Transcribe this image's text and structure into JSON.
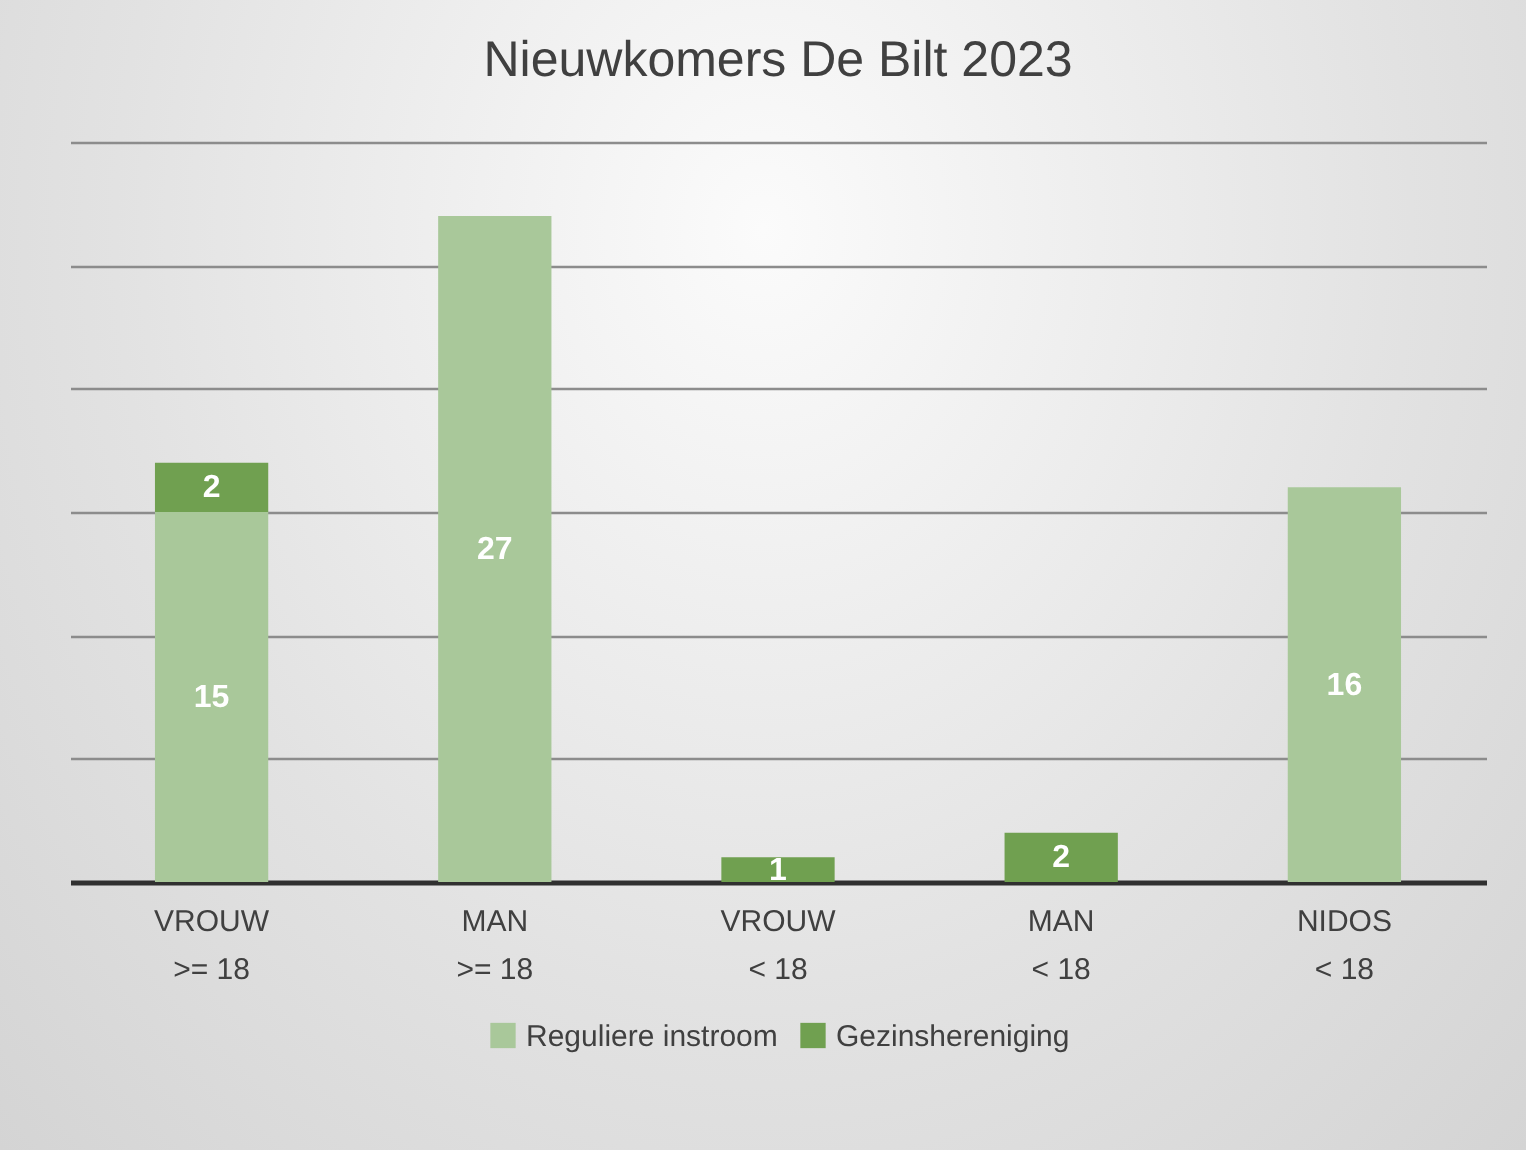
{
  "chart_data": {
    "type": "bar",
    "title": "Nieuwkomers De Bilt 2023",
    "categories": [
      "VROUW\n>= 18",
      "MAN\n>= 18",
      "VROUW\n< 18",
      "MAN\n< 18",
      "NIDOS\n< 18"
    ],
    "stacked": true,
    "series": [
      {
        "name": "Reguliere instroom",
        "color": "#a9c89a",
        "values": [
          15,
          27,
          null,
          null,
          16
        ]
      },
      {
        "name": "Gezinshereniging",
        "color": "#70a050",
        "values": [
          2,
          null,
          1,
          2,
          null
        ]
      }
    ],
    "ylim": [
      0,
      30
    ],
    "yticks": [
      {
        "value": 0,
        "label": null
      },
      {
        "value": 5,
        "label": null
      },
      {
        "value": 10,
        "label": null
      },
      {
        "value": 15,
        "label": null
      },
      {
        "value": 20,
        "label": null
      },
      {
        "value": 25,
        "label": null
      },
      {
        "value": 30,
        "label": null
      }
    ],
    "tick_labels": "x",
    "grid": "y",
    "data_labels": true,
    "legend": "bottom"
  }
}
